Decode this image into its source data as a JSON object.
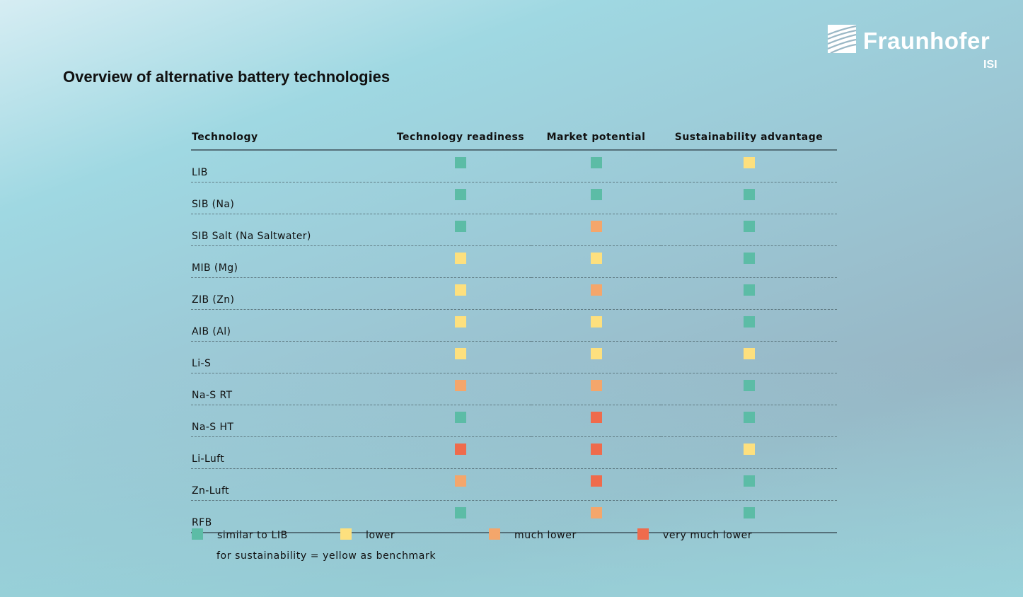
{
  "title": "Overview of alternative battery technologies",
  "logo": {
    "name": "Fraunhofer",
    "sub": "ISI"
  },
  "colors": {
    "similar": "#5cbca6",
    "lower": "#fde07e",
    "much_lower": "#f4a66b",
    "very_much_lower": "#ef6b4c"
  },
  "table": {
    "headers": [
      "Technology",
      "Technology readiness",
      "Market potential",
      "Sustainability advantage"
    ],
    "rows": [
      {
        "name": "LIB",
        "ratings": [
          "similar",
          "similar",
          "lower"
        ]
      },
      {
        "name": "SIB (Na)",
        "ratings": [
          "similar",
          "similar",
          "similar"
        ]
      },
      {
        "name": "SIB Salt (Na Saltwater)",
        "ratings": [
          "similar",
          "much_lower",
          "similar"
        ]
      },
      {
        "name": "MIB (Mg)",
        "ratings": [
          "lower",
          "lower",
          "similar"
        ]
      },
      {
        "name": "ZIB (Zn)",
        "ratings": [
          "lower",
          "much_lower",
          "similar"
        ]
      },
      {
        "name": "AIB (Al)",
        "ratings": [
          "lower",
          "lower",
          "similar"
        ]
      },
      {
        "name": "Li-S",
        "ratings": [
          "lower",
          "lower",
          "lower"
        ]
      },
      {
        "name": "Na-S RT",
        "ratings": [
          "much_lower",
          "much_lower",
          "similar"
        ]
      },
      {
        "name": "Na-S HT",
        "ratings": [
          "similar",
          "very_much_lower",
          "similar"
        ]
      },
      {
        "name": "Li-Luft",
        "ratings": [
          "very_much_lower",
          "very_much_lower",
          "lower"
        ]
      },
      {
        "name": "Zn-Luft",
        "ratings": [
          "much_lower",
          "very_much_lower",
          "similar"
        ]
      },
      {
        "name": "RFB",
        "ratings": [
          "similar",
          "much_lower",
          "similar"
        ]
      }
    ]
  },
  "legend": {
    "items": [
      {
        "key": "similar",
        "label": "similar to LIB"
      },
      {
        "key": "lower",
        "label": "lower"
      },
      {
        "key": "much_lower",
        "label": "much lower"
      },
      {
        "key": "very_much_lower",
        "label": "very much lower"
      }
    ],
    "note": "for sustainability = yellow as benchmark"
  }
}
